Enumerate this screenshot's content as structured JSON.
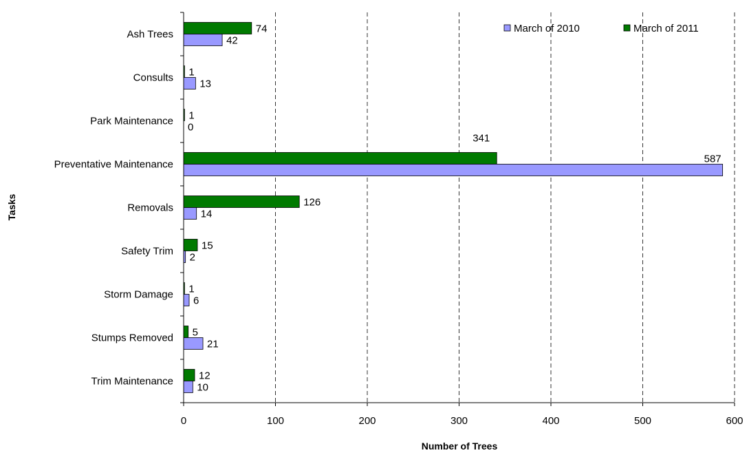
{
  "chart_data": {
    "type": "bar",
    "orientation": "horizontal",
    "title": "",
    "xlabel": "Number of Trees",
    "ylabel": "Tasks",
    "xlim": [
      0,
      600
    ],
    "x_ticks": [
      "0",
      "100",
      "200",
      "300",
      "400",
      "500",
      "600"
    ],
    "grid": "vertical-dashed",
    "legend_position": "top-right",
    "categories": [
      "Ash Trees",
      "Consults",
      "Park Maintenance",
      "Preventative Maintenance",
      "Removals",
      "Safety Trim",
      "Storm Damage",
      "Stumps Removed",
      "Trim Maintenance"
    ],
    "series": [
      {
        "name": "March of 2010",
        "color": "#9999FF",
        "values": [
          42,
          13,
          0,
          587,
          14,
          2,
          6,
          21,
          10
        ]
      },
      {
        "name": "March of 2011",
        "color": "#007A00",
        "values": [
          74,
          1,
          1,
          341,
          126,
          15,
          1,
          5,
          12
        ]
      }
    ]
  }
}
